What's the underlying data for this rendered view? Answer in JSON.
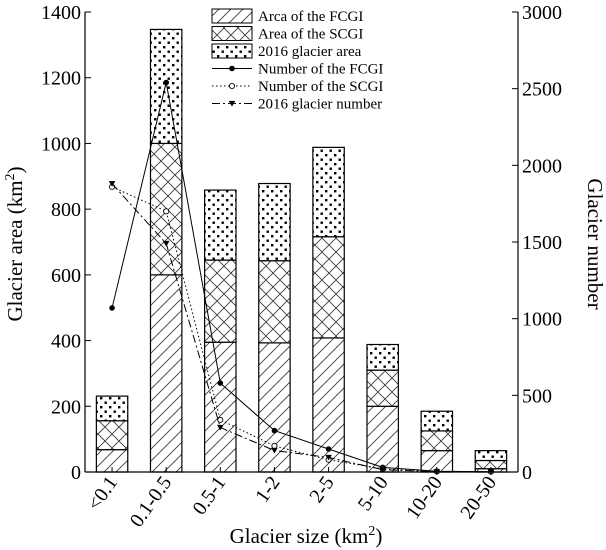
{
  "chart_data": {
    "type": "bar",
    "title": "",
    "xlabel": "Glacier size (km",
    "xlabel_sup": "2",
    "xlabel_end": ")",
    "ylabel": "Glacier area (km",
    "ylabel_sup": "2",
    "ylabel_end": ")",
    "y2label": "Glacier number",
    "ylim": [
      0,
      1400
    ],
    "y2lim": [
      0,
      3000
    ],
    "yticks": [
      "0",
      "200",
      "400",
      "600",
      "800",
      "1000",
      "1200",
      "1400"
    ],
    "y2ticks": [
      "0",
      "500",
      "1000",
      "1500",
      "2000",
      "2500",
      "3000"
    ],
    "categories": [
      "<0.1",
      "0.1-0.5",
      "0.5-1",
      "1-2",
      "2-5",
      "5-10",
      "10-20",
      "20-50"
    ],
    "stacked_series": [
      {
        "name": "Arca of the FCGI",
        "pattern": "diagonal",
        "values": [
          68,
          600,
          395,
          393,
          408,
          200,
          65,
          10
        ]
      },
      {
        "name": "Area of the SCGI",
        "pattern": "crosshatch",
        "values": [
          88,
          400,
          250,
          250,
          308,
          110,
          60,
          25
        ]
      },
      {
        "name": "2016 glacier area",
        "pattern": "dots",
        "values": [
          75,
          347,
          213,
          235,
          272,
          78,
          60,
          30
        ]
      }
    ],
    "line_series": [
      {
        "name": "Number of the FCGI",
        "style": "solid",
        "marker": "filled-circle",
        "values": [
          1070,
          2540,
          580,
          270,
          150,
          30,
          5,
          2
        ]
      },
      {
        "name": "Number of the SCGI",
        "style": "dotted",
        "marker": "open-circle",
        "values": [
          1860,
          1700,
          340,
          170,
          80,
          20,
          3,
          2
        ]
      },
      {
        "name": "2016 glacier number",
        "style": "dashdot",
        "marker": "filled-triangle-down",
        "values": [
          1880,
          1490,
          290,
          140,
          95,
          15,
          2,
          1
        ]
      }
    ],
    "legend_position": "top-center",
    "grid": false
  }
}
